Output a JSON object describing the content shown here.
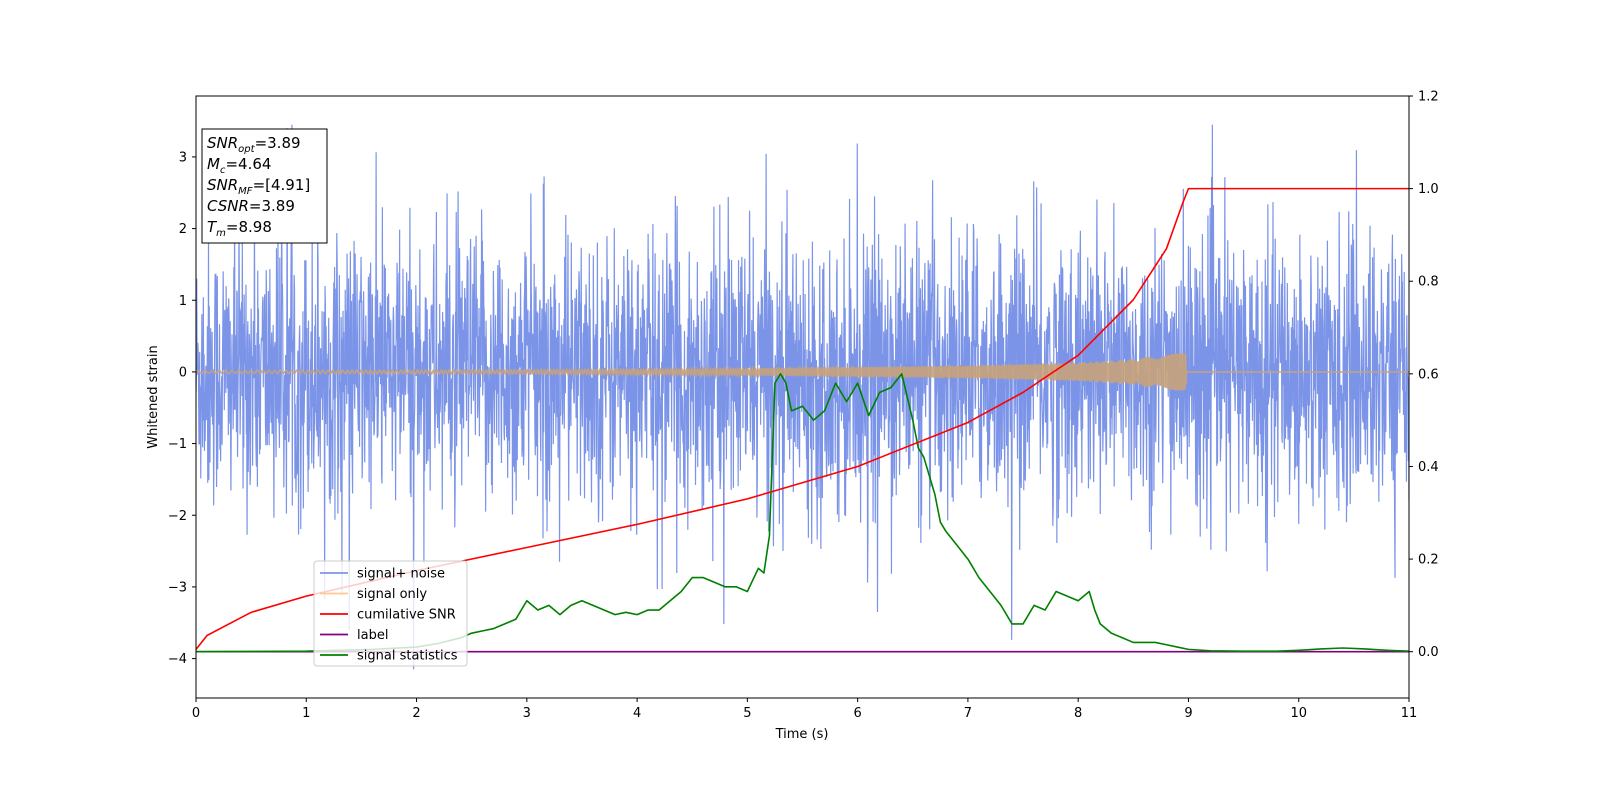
{
  "chart_data": {
    "type": "line",
    "xlabel": "Time (s)",
    "ylabel": "Whitened strain",
    "xlim": [
      0,
      11
    ],
    "ylim_left": [
      -4.55,
      3.85
    ],
    "ylim_right": [
      -0.1,
      1.2
    ],
    "x_ticks": [
      0,
      1,
      2,
      3,
      4,
      5,
      6,
      7,
      8,
      9,
      10,
      11
    ],
    "y_ticks_left": [
      -4,
      -3,
      -2,
      -1,
      0,
      1,
      2,
      3
    ],
    "y_tick_labels_left": [
      "−4",
      "−3",
      "−2",
      "−1",
      "0",
      "1",
      "2",
      "3"
    ],
    "y_ticks_right": [
      0.0,
      0.2,
      0.4,
      0.6,
      0.8,
      1.0,
      1.2
    ],
    "y_tick_labels_right": [
      "0.0",
      "0.2",
      "0.4",
      "0.6",
      "0.8",
      "1.0",
      "1.2"
    ],
    "grid": false,
    "legend_position": "lower-left",
    "info_box": {
      "position": "upper-left",
      "lines": [
        {
          "base": "SNR",
          "sub": "opt",
          "rest": "=3.89"
        },
        {
          "base": "M",
          "sub": "c",
          "rest": "=4.64"
        },
        {
          "base": "SNR",
          "sub": "MF",
          "rest": "=[4.91]"
        },
        {
          "base": "CSNR",
          "sub": "",
          "rest": "=3.89"
        },
        {
          "base": "T",
          "sub": "m",
          "rest": "=8.98"
        }
      ]
    },
    "series": [
      {
        "name": "signal+ noise",
        "axis": "left",
        "color": "#7b94e8",
        "style": "noise",
        "description_values": {
          "typical_amplitude": 1.3,
          "max": 3.45,
          "min": -4.15,
          "samples_per_second": 300
        }
      },
      {
        "name": "signal only",
        "axis": "left",
        "color": "#c8a27a",
        "style": "chirp",
        "t_merger": 8.98,
        "envelope": {
          "x": [
            0,
            3,
            5,
            6,
            7,
            8,
            8.5,
            8.8,
            8.98,
            9.0
          ],
          "y": [
            0.02,
            0.03,
            0.05,
            0.07,
            0.09,
            0.13,
            0.18,
            0.25,
            0.3,
            0
          ]
        }
      },
      {
        "name": "cumilative SNR",
        "axis": "right",
        "color": "#ff0000",
        "x": [
          0,
          0.1,
          0.5,
          1,
          2,
          3,
          4,
          5,
          6,
          7,
          7.5,
          8,
          8.5,
          8.8,
          8.95,
          9.0,
          11
        ],
        "values": [
          0.005,
          0.035,
          0.085,
          0.12,
          0.175,
          0.225,
          0.275,
          0.33,
          0.4,
          0.495,
          0.56,
          0.64,
          0.76,
          0.87,
          0.97,
          1.0,
          1.0
        ]
      },
      {
        "name": "label",
        "axis": "right",
        "color": "#800080",
        "x": [
          0,
          11
        ],
        "values": [
          0.0,
          0.0
        ]
      },
      {
        "name": "signal statistics",
        "axis": "right",
        "color": "#008000",
        "x": [
          0,
          1.0,
          1.6,
          2.0,
          2.2,
          2.4,
          2.5,
          2.6,
          2.7,
          2.8,
          2.9,
          3.0,
          3.1,
          3.2,
          3.3,
          3.4,
          3.5,
          3.6,
          3.7,
          3.8,
          3.9,
          4.0,
          4.1,
          4.2,
          4.3,
          4.4,
          4.5,
          4.6,
          4.7,
          4.8,
          4.9,
          5.0,
          5.1,
          5.15,
          5.2,
          5.25,
          5.3,
          5.35,
          5.4,
          5.5,
          5.6,
          5.7,
          5.8,
          5.9,
          6.0,
          6.1,
          6.2,
          6.3,
          6.4,
          6.5,
          6.55,
          6.6,
          6.7,
          6.75,
          6.8,
          6.9,
          7.0,
          7.1,
          7.2,
          7.3,
          7.4,
          7.5,
          7.6,
          7.7,
          7.8,
          7.9,
          8.0,
          8.1,
          8.15,
          8.2,
          8.3,
          8.4,
          8.5,
          8.6,
          8.7,
          8.8,
          8.9,
          9.0,
          9.2,
          9.5,
          9.8,
          10.0,
          10.2,
          10.4,
          10.6,
          10.8,
          11.0
        ],
        "values": [
          0.0,
          0.001,
          0.005,
          0.01,
          0.018,
          0.03,
          0.04,
          0.045,
          0.05,
          0.06,
          0.07,
          0.11,
          0.09,
          0.1,
          0.08,
          0.1,
          0.11,
          0.1,
          0.09,
          0.08,
          0.085,
          0.08,
          0.09,
          0.09,
          0.11,
          0.13,
          0.16,
          0.16,
          0.15,
          0.14,
          0.14,
          0.13,
          0.18,
          0.17,
          0.25,
          0.58,
          0.6,
          0.58,
          0.52,
          0.53,
          0.5,
          0.52,
          0.58,
          0.54,
          0.58,
          0.51,
          0.56,
          0.57,
          0.6,
          0.5,
          0.44,
          0.42,
          0.34,
          0.28,
          0.26,
          0.23,
          0.2,
          0.16,
          0.13,
          0.1,
          0.06,
          0.06,
          0.1,
          0.09,
          0.13,
          0.12,
          0.11,
          0.13,
          0.09,
          0.06,
          0.04,
          0.03,
          0.02,
          0.02,
          0.02,
          0.015,
          0.01,
          0.005,
          0.002,
          0.001,
          0.001,
          0.003,
          0.006,
          0.008,
          0.006,
          0.003,
          0.001
        ]
      }
    ]
  }
}
